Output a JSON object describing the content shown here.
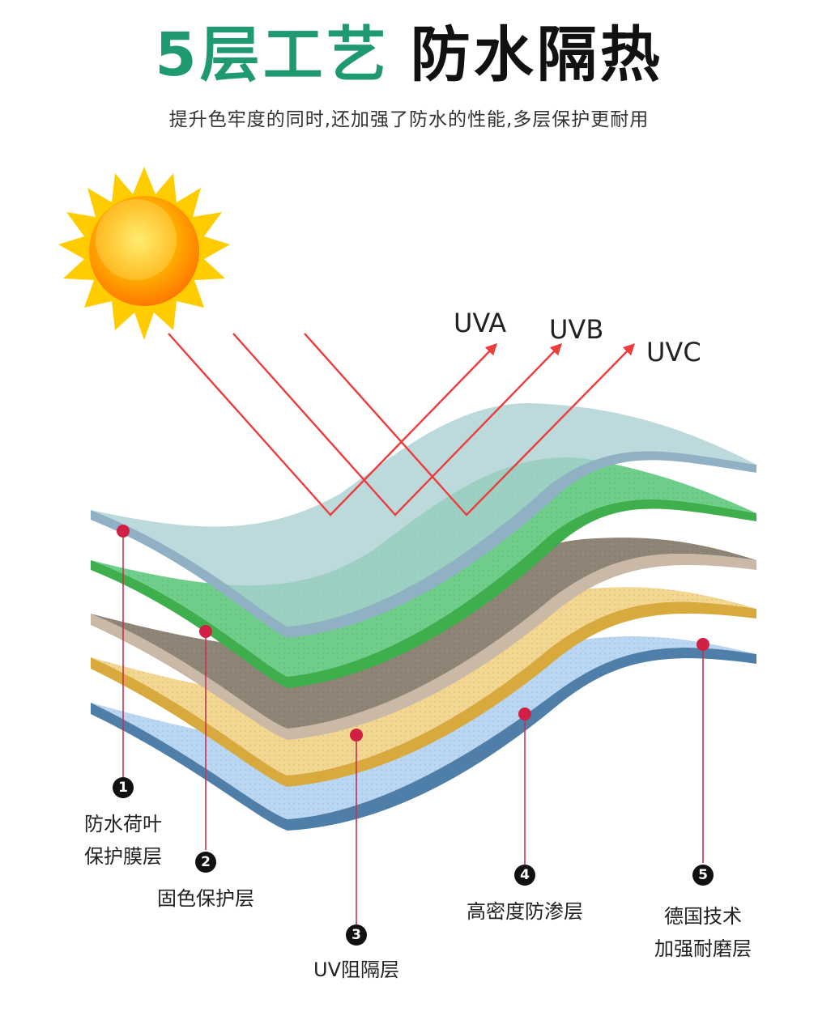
{
  "header": {
    "title_green": "5层工艺",
    "title_black": "防水隔热",
    "subtitle": "提升色牢度的同时,还加强了防水的性能,多层保护更耐用"
  },
  "rays": [
    "UVA",
    "UVB",
    "UVC"
  ],
  "layers": [
    {
      "number": "1",
      "line1": "防水荷叶",
      "line2": "保护膜层",
      "color": "#a9cfd2"
    },
    {
      "number": "2",
      "line1": "固色保护层",
      "line2": "",
      "color": "#6fcf8a"
    },
    {
      "number": "3",
      "line1": "UV阻隔层",
      "line2": "",
      "color": "#8f8577"
    },
    {
      "number": "4",
      "line1": "高密度防渗层",
      "line2": "",
      "color": "#f3d68f"
    },
    {
      "number": "5",
      "line1": "德国技术",
      "line2": "加强耐磨层",
      "color": "#b9d6f2"
    }
  ],
  "colors": {
    "accent_green": "#1f9a6e",
    "ray_red": "#ee3b3b",
    "marker": "#d11f45"
  }
}
